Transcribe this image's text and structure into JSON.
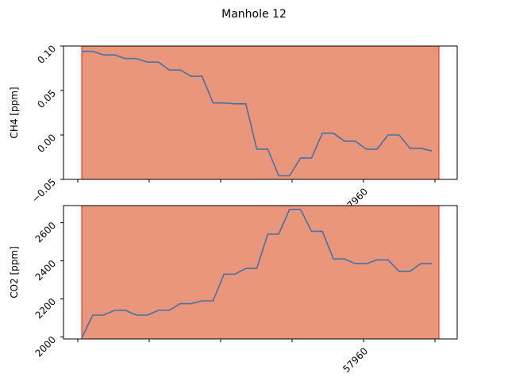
{
  "figure": {
    "title": "Manhole 12"
  },
  "chart_data": [
    {
      "type": "line",
      "title": "",
      "xlabel": "",
      "ylabel": "CH4 [ppm]",
      "ylim": [
        -0.05,
        0.1
      ],
      "y_ticks": [
        -0.05,
        0.0,
        0.05,
        0.1
      ],
      "y_tick_labels": [
        "−0.05",
        "0.00",
        "0.05",
        "0.10"
      ],
      "x_tick_labels": [
        "57960"
      ],
      "grid": false,
      "shaded_region": {
        "color": "#e9967a"
      },
      "series": [
        {
          "color": "#4472a8",
          "values": [
            0.094,
            0.094,
            0.09,
            0.09,
            0.086,
            0.086,
            0.082,
            0.082,
            0.073,
            0.073,
            0.066,
            0.066,
            0.036,
            0.036,
            0.035,
            0.035,
            -0.016,
            -0.016,
            -0.046,
            -0.046,
            -0.026,
            -0.026,
            0.002,
            0.002,
            -0.007,
            -0.007,
            -0.016,
            -0.016,
            0.0,
            0.0,
            -0.015,
            -0.015,
            -0.018
          ]
        }
      ]
    },
    {
      "type": "line",
      "title": "",
      "xlabel": "",
      "ylabel": "CO2 [ppm]",
      "ylim": [
        1990,
        2690
      ],
      "y_ticks": [
        2000,
        2200,
        2400,
        2600
      ],
      "y_tick_labels": [
        "2000",
        "2200",
        "2400",
        "2600"
      ],
      "x_tick_labels": [
        "57960"
      ],
      "grid": false,
      "shaded_region": {
        "color": "#e9967a"
      },
      "series": [
        {
          "color": "#4472a8",
          "values": [
            1995,
            2115,
            2115,
            2140,
            2140,
            2115,
            2115,
            2140,
            2140,
            2175,
            2175,
            2190,
            2190,
            2330,
            2330,
            2360,
            2360,
            2540,
            2540,
            2670,
            2670,
            2555,
            2555,
            2410,
            2410,
            2385,
            2385,
            2405,
            2405,
            2345,
            2345,
            2385,
            2385
          ]
        }
      ]
    }
  ]
}
